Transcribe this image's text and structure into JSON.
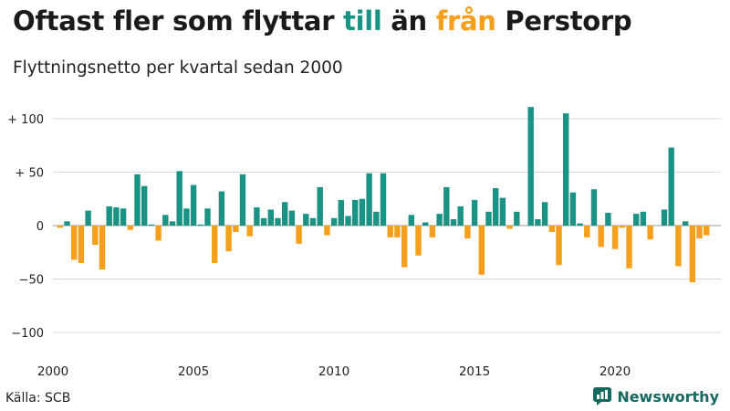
{
  "header": {
    "title_part1": "Oftast fler som flyttar ",
    "title_part2": "till",
    "title_part3": " än ",
    "title_part4": "från",
    "title_part5": " Perstorp",
    "subtitle": "Flyttningsnetto per kvartal sedan 2000"
  },
  "footer": {
    "source": "Källa: SCB",
    "brand": "Newsworthy"
  },
  "colors": {
    "positive": "#1a9384",
    "negative": "#f59f1c",
    "grid": "#d9d9d9",
    "zero_line": "#9a9a9a",
    "brand": "#16695f"
  },
  "chart_data": {
    "type": "bar",
    "first_quarter": "2000-Q1",
    "y_ticks": [
      100,
      50,
      0,
      -50,
      -100
    ],
    "y_tick_labels": [
      "+ 100",
      "+  50",
      "0",
      "−50",
      "−100"
    ],
    "x_ticks": [
      "2000",
      "2005",
      "2010",
      "2015",
      "2020"
    ],
    "ylim": [
      -105,
      112
    ],
    "values": [
      -2,
      4,
      -32,
      -35,
      14,
      -18,
      -41,
      18,
      17,
      16,
      -4,
      48,
      37,
      1,
      -14,
      10,
      4,
      51,
      16,
      38,
      1,
      16,
      -35,
      32,
      -24,
      -6,
      48,
      -10,
      17,
      7,
      15,
      7,
      22,
      14,
      -17,
      11,
      7,
      36,
      -9,
      7,
      24,
      9,
      24,
      25,
      49,
      13,
      49,
      -11,
      -11,
      -39,
      10,
      -28,
      3,
      -11,
      11,
      36,
      6,
      18,
      -12,
      24,
      -46,
      13,
      35,
      26,
      -3,
      13,
      0,
      111,
      6,
      22,
      -6,
      -37,
      105,
      31,
      2,
      -11,
      34,
      -20,
      12,
      -22,
      -2,
      -40,
      11,
      13,
      -13,
      0,
      15,
      73,
      -38,
      4,
      -53,
      -12,
      -9
    ]
  }
}
